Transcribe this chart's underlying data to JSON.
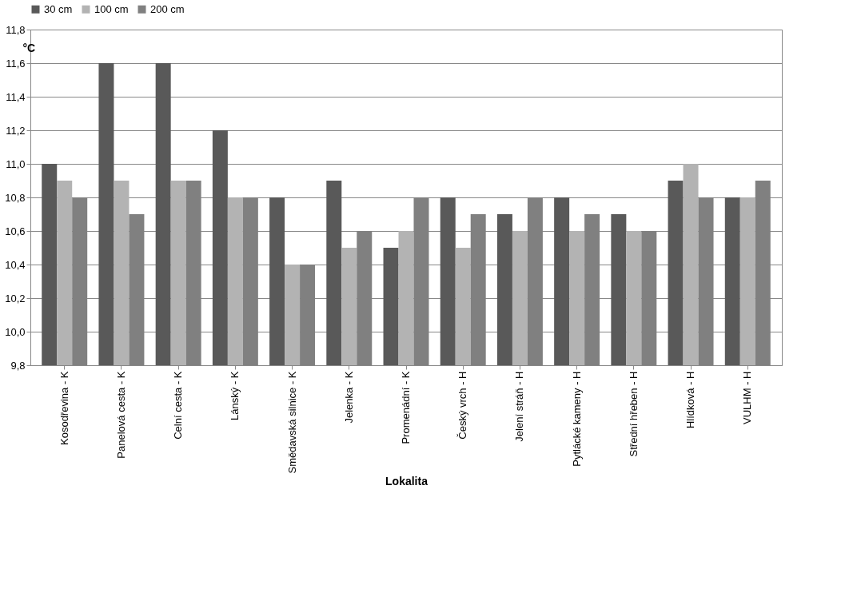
{
  "chart_data": {
    "type": "bar",
    "xlabel": "Lokalita",
    "ylabel": "°C",
    "categories": [
      "Kosodřevina - K",
      "Panelová cesta - K",
      "Celní cesta - K",
      "Lánský - K",
      "Smědavská silnice - K",
      "Jelenka - K",
      "Promenádní - K",
      "Český vrch - H",
      "Jelení stráň - H",
      "Pytlácké kameny - H",
      "Střední hřeben - H",
      "Hlídková - H",
      "VULHM - H"
    ],
    "series": [
      {
        "name": "30 cm",
        "color": "#595959",
        "values": [
          11.0,
          11.6,
          11.6,
          11.2,
          10.8,
          10.9,
          10.5,
          10.8,
          10.7,
          10.8,
          10.7,
          10.9,
          10.8
        ]
      },
      {
        "name": "100 cm",
        "color": "#b3b3b3",
        "values": [
          10.9,
          10.9,
          10.9,
          10.8,
          10.4,
          10.5,
          10.6,
          10.5,
          10.6,
          10.6,
          10.6,
          11.0,
          10.8
        ]
      },
      {
        "name": "200 cm",
        "color": "#808080",
        "values": [
          10.8,
          10.7,
          10.9,
          10.8,
          10.4,
          10.6,
          10.8,
          10.7,
          10.8,
          10.7,
          10.6,
          10.8,
          10.9
        ]
      }
    ],
    "ylim": [
      9.8,
      11.8
    ],
    "yticks": [
      {
        "value": 9.8,
        "label": "9,8"
      },
      {
        "value": 10.0,
        "label": "10,0"
      },
      {
        "value": 10.2,
        "label": "10,2"
      },
      {
        "value": 10.4,
        "label": "10,4"
      },
      {
        "value": 10.6,
        "label": "10,6"
      },
      {
        "value": 10.8,
        "label": "10,8"
      },
      {
        "value": 11.0,
        "label": "11,0"
      },
      {
        "value": 11.2,
        "label": "11,2"
      },
      {
        "value": 11.4,
        "label": "11,4"
      },
      {
        "value": 11.6,
        "label": "11,6"
      },
      {
        "value": 11.8,
        "label": "11,8"
      }
    ],
    "grid": "y",
    "legend": "top"
  }
}
